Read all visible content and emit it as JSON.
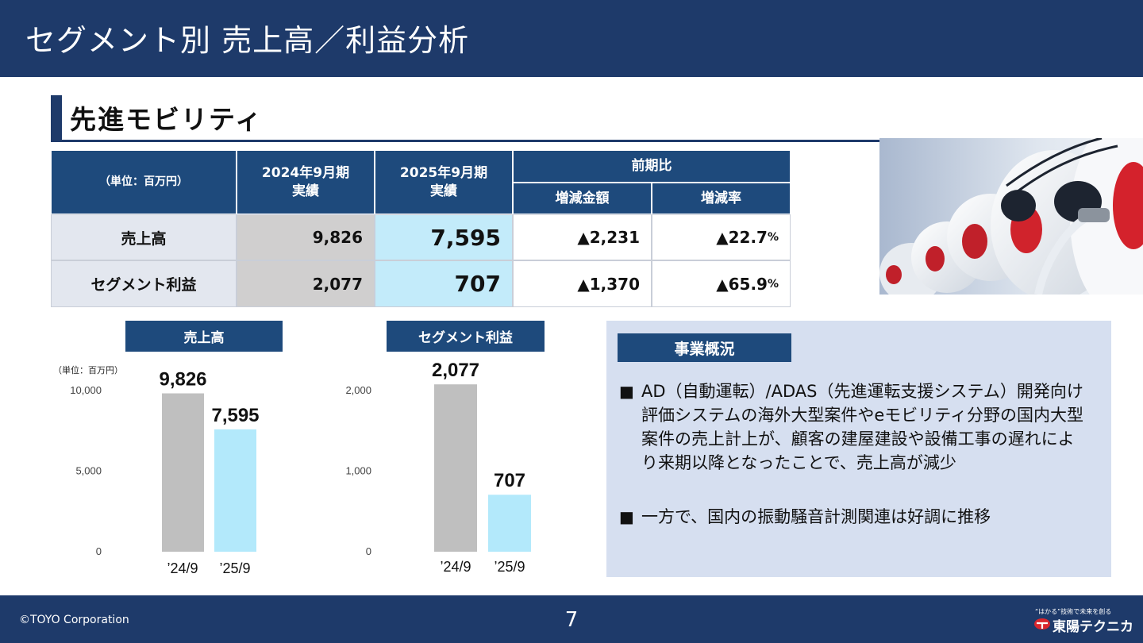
{
  "header": {
    "title": "セグメント別 売上高／利益分析"
  },
  "segment": {
    "title": "先進モビリティ"
  },
  "table": {
    "unit": "（単位：百万円）",
    "col_2024": "2024年9月期\n実績",
    "col_2025": "2025年9月期\n実績",
    "col_compare": "前期比",
    "col_diff": "増減金額",
    "col_rate": "増減率",
    "rows": [
      {
        "label": "売上高",
        "v2024": "9,826",
        "v2025": "7,595",
        "diff": "▲2,231",
        "rate": "▲22.7",
        "rate_unit": "%"
      },
      {
        "label": "セグメント利益",
        "v2024": "2,077",
        "v2025": "707",
        "diff": "▲1,370",
        "rate": "▲65.9",
        "rate_unit": "%"
      }
    ]
  },
  "chart_data": [
    {
      "type": "bar",
      "title": "売上高",
      "unit_note": "（単位：百万円）",
      "categories": [
        "’24/9",
        "’25/9"
      ],
      "values": [
        9826,
        7595
      ],
      "value_labels": [
        "9,826",
        "7,595"
      ],
      "yticks": [
        "10,000",
        "5,000",
        "0"
      ],
      "ylim": [
        0,
        10000
      ],
      "colors": [
        "#bfbfbf",
        "#b3e9fb"
      ]
    },
    {
      "type": "bar",
      "title": "セグメント利益",
      "categories": [
        "’24/9",
        "’25/9"
      ],
      "values": [
        2077,
        707
      ],
      "value_labels": [
        "2,077",
        "707"
      ],
      "yticks": [
        "2,000",
        "1,000",
        "0"
      ],
      "ylim": [
        0,
        2000
      ],
      "colors": [
        "#bfbfbf",
        "#b3e9fb"
      ]
    }
  ],
  "business": {
    "title": "事業概況",
    "bullet_mark": "■",
    "bullets": [
      "AD（自動運転）/ADAS（先進運転支援システム）開発向け評価システムの海外大型案件やeモビリティ分野の国内大型案件の売上計上が、顧客の建屋建設や設備工事の遅れにより来期以降となったことで、売上高が減少",
      "一方で、国内の振動騒音計測関連は好調に推移"
    ]
  },
  "footer": {
    "copyright": "©TOYO Corporation",
    "page": "7",
    "logo_tagline": "“はかる”技術で未来を創る",
    "logo_name": "東陽テクニカ"
  },
  "colors": {
    "navy": "#1e3a6a",
    "table_header": "#1e4a7c",
    "bar_2024": "#bfbfbf",
    "bar_2025": "#b3e9fb",
    "panel_bg": "#d6dff0"
  }
}
